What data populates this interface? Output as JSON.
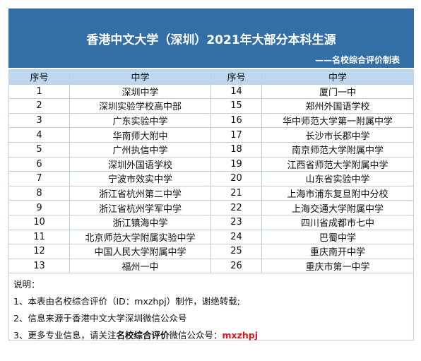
{
  "header": {
    "title": "香港中文大学（深圳）2021年大部分本科生源",
    "subtitle": "——名校综合评价制表"
  },
  "table": {
    "columns": [
      "序号",
      "中学",
      "序号",
      "中学"
    ],
    "rows": [
      [
        "1",
        "深圳中学",
        "14",
        "厦门一中"
      ],
      [
        "2",
        "深圳实验学校高中部",
        "15",
        "郑州外国语学校"
      ],
      [
        "3",
        "广东实验中学",
        "16",
        "华中师范大学第一附属中学"
      ],
      [
        "4",
        "华南师大附中",
        "17",
        "长沙市长郡中学"
      ],
      [
        "5",
        "广州执信中学",
        "18",
        "南京师范大学附属中学"
      ],
      [
        "6",
        "深圳外国语学校",
        "19",
        "江西省师范大学附属中学"
      ],
      [
        "7",
        "宁波市效实中学",
        "20",
        "山东省实验中学"
      ],
      [
        "8",
        "浙江省杭州第二中学",
        "21",
        "上海市浦东复旦附中分校"
      ],
      [
        "9",
        "浙江省杭州学军中学",
        "22",
        "上海交通大学附属中学"
      ],
      [
        "10",
        "浙江镇海中学",
        "23",
        "四川省成都市七中"
      ],
      [
        "11",
        "北京师范大学附属实验中学",
        "24",
        "巴蜀中学"
      ],
      [
        "12",
        "中国人民大学附属中学",
        "25",
        "重庆南开中学"
      ],
      [
        "13",
        "福州一中",
        "26",
        "重庆市第一中学"
      ]
    ]
  },
  "notes": {
    "label": "说明：",
    "lines": [
      "1、本表由名校综合评价（ID：mxzhpj）制作，谢绝转载;",
      "2、信息来源于香港中文大学深圳微信公众号"
    ],
    "line3": {
      "prefix": "3、更多专业信息，请关注",
      "highlight": "名校综合评价",
      "middle": "微信公众号：",
      "code": "mxzhpj"
    }
  }
}
